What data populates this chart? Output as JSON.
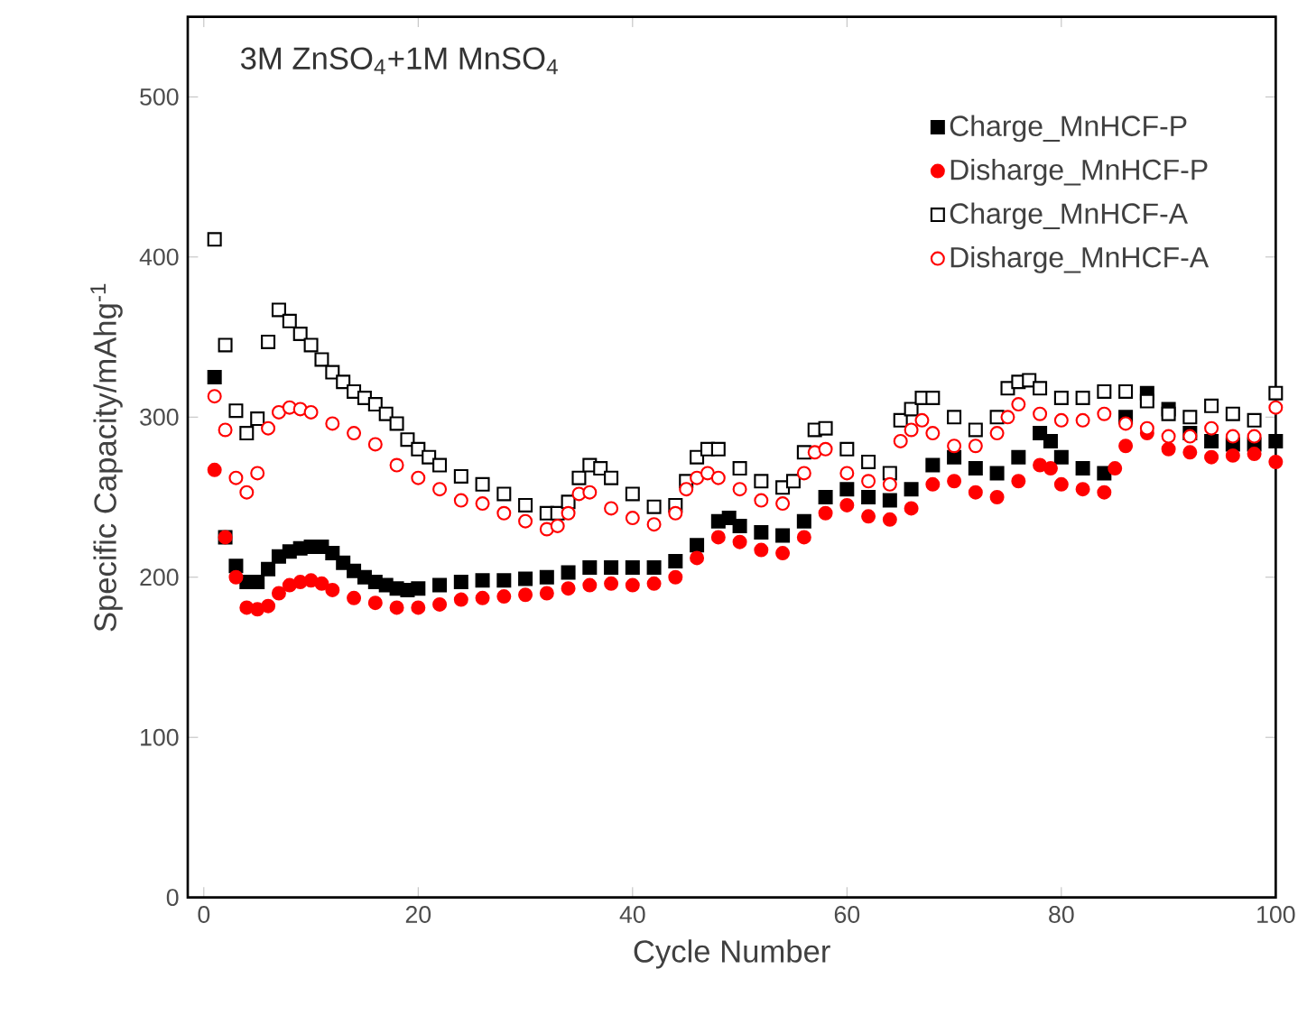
{
  "chart_data": {
    "type": "scatter",
    "xlabel": "Cycle Number",
    "ylabel": "Specific Capacity/mAhg$^{-1}$",
    "annotations": [
      "3M ZnSO$_{4}$+1M MnSO$_{4}$"
    ],
    "xlim": [
      -1.5,
      100
    ],
    "ylim": [
      0,
      550
    ],
    "xticks": [
      0,
      20,
      40,
      60,
      80,
      100
    ],
    "yticks": [
      0,
      100,
      200,
      300,
      400,
      500
    ],
    "legend": "top right",
    "grid": false,
    "series": [
      {
        "name": "Charge_MnHCF-P",
        "color": "#000000",
        "marker": "square",
        "x": [
          1,
          2,
          3,
          4,
          5,
          6,
          7,
          8,
          9,
          10,
          11,
          12,
          13,
          14,
          15,
          16,
          17,
          18,
          19,
          20,
          22,
          24,
          26,
          28,
          30,
          32,
          34,
          36,
          38,
          40,
          42,
          44,
          46,
          48,
          49,
          50,
          52,
          54,
          56,
          58,
          60,
          62,
          64,
          66,
          68,
          70,
          72,
          74,
          76,
          78,
          79,
          80,
          82,
          84,
          86,
          88,
          90,
          92,
          94,
          96,
          98,
          100
        ],
        "values": [
          325,
          225,
          207,
          197,
          197,
          205,
          213,
          216,
          218,
          219,
          219,
          215,
          209,
          204,
          200,
          197,
          195,
          193,
          192,
          193,
          195,
          197,
          198,
          198,
          199,
          200,
          203,
          206,
          206,
          206,
          206,
          210,
          220,
          235,
          237,
          232,
          228,
          226,
          235,
          250,
          255,
          250,
          248,
          255,
          270,
          275,
          268,
          265,
          275,
          290,
          285,
          275,
          268,
          265,
          300,
          315,
          305,
          290,
          285,
          283,
          283,
          285
        ]
      },
      {
        "name": "Disharge_MnHCF-P",
        "color": "#ff0000",
        "marker": "circle",
        "x": [
          1,
          2,
          3,
          4,
          5,
          6,
          7,
          8,
          9,
          10,
          11,
          12,
          14,
          16,
          18,
          20,
          22,
          24,
          26,
          28,
          30,
          32,
          34,
          36,
          38,
          40,
          42,
          44,
          46,
          48,
          50,
          52,
          54,
          56,
          58,
          60,
          62,
          64,
          66,
          68,
          70,
          72,
          74,
          76,
          78,
          79,
          80,
          82,
          84,
          85,
          86,
          88,
          90,
          92,
          94,
          96,
          98,
          100
        ],
        "values": [
          267,
          225,
          200,
          181,
          180,
          182,
          190,
          195,
          197,
          198,
          196,
          192,
          187,
          184,
          181,
          181,
          183,
          186,
          187,
          188,
          189,
          190,
          193,
          195,
          196,
          195,
          196,
          200,
          212,
          225,
          222,
          217,
          215,
          225,
          240,
          245,
          238,
          236,
          243,
          258,
          260,
          253,
          250,
          260,
          270,
          268,
          258,
          255,
          253,
          268,
          282,
          290,
          280,
          278,
          275,
          276,
          277,
          272
        ]
      },
      {
        "name": "Charge_MnHCF-A",
        "color": "#000000",
        "marker": "square",
        "x": [
          1,
          2,
          3,
          4,
          5,
          6,
          7,
          8,
          9,
          10,
          11,
          12,
          13,
          14,
          15,
          16,
          17,
          18,
          19,
          20,
          21,
          22,
          24,
          26,
          28,
          30,
          32,
          33,
          34,
          35,
          36,
          37,
          38,
          40,
          42,
          44,
          45,
          46,
          47,
          48,
          50,
          52,
          54,
          55,
          56,
          57,
          58,
          60,
          62,
          64,
          65,
          66,
          67,
          68,
          70,
          72,
          74,
          75,
          76,
          77,
          78,
          80,
          82,
          84,
          86,
          88,
          90,
          92,
          94,
          96,
          98,
          100
        ],
        "values": [
          411,
          345,
          304,
          290,
          299,
          347,
          367,
          360,
          352,
          345,
          336,
          328,
          322,
          316,
          312,
          308,
          302,
          296,
          286,
          280,
          275,
          270,
          263,
          258,
          252,
          245,
          240,
          240,
          247,
          262,
          270,
          268,
          262,
          252,
          244,
          245,
          260,
          275,
          280,
          280,
          268,
          260,
          256,
          260,
          278,
          292,
          293,
          280,
          272,
          265,
          298,
          305,
          312,
          312,
          300,
          292,
          300,
          318,
          322,
          323,
          318,
          312,
          312,
          316,
          316,
          310,
          302,
          300,
          307,
          302,
          298,
          315
        ]
      },
      {
        "name": "Disharge_MnHCF-A",
        "color": "#ff0000",
        "marker": "circle",
        "x": [
          1,
          2,
          3,
          4,
          5,
          6,
          7,
          8,
          9,
          10,
          12,
          14,
          16,
          18,
          20,
          22,
          24,
          26,
          28,
          30,
          32,
          33,
          34,
          35,
          36,
          38,
          40,
          42,
          44,
          45,
          46,
          47,
          48,
          50,
          52,
          54,
          56,
          57,
          58,
          60,
          62,
          64,
          65,
          66,
          67,
          68,
          70,
          72,
          74,
          75,
          76,
          78,
          80,
          82,
          84,
          86,
          88,
          90,
          92,
          94,
          96,
          98,
          100
        ],
        "values": [
          313,
          292,
          262,
          253,
          265,
          293,
          303,
          306,
          305,
          303,
          296,
          290,
          283,
          270,
          262,
          255,
          248,
          246,
          240,
          235,
          230,
          232,
          240,
          252,
          253,
          243,
          237,
          233,
          240,
          255,
          262,
          265,
          262,
          255,
          248,
          246,
          265,
          278,
          280,
          265,
          260,
          258,
          285,
          292,
          298,
          290,
          282,
          282,
          290,
          300,
          308,
          302,
          298,
          298,
          302,
          296,
          293,
          288,
          288,
          293,
          288,
          288,
          306
        ]
      }
    ]
  }
}
